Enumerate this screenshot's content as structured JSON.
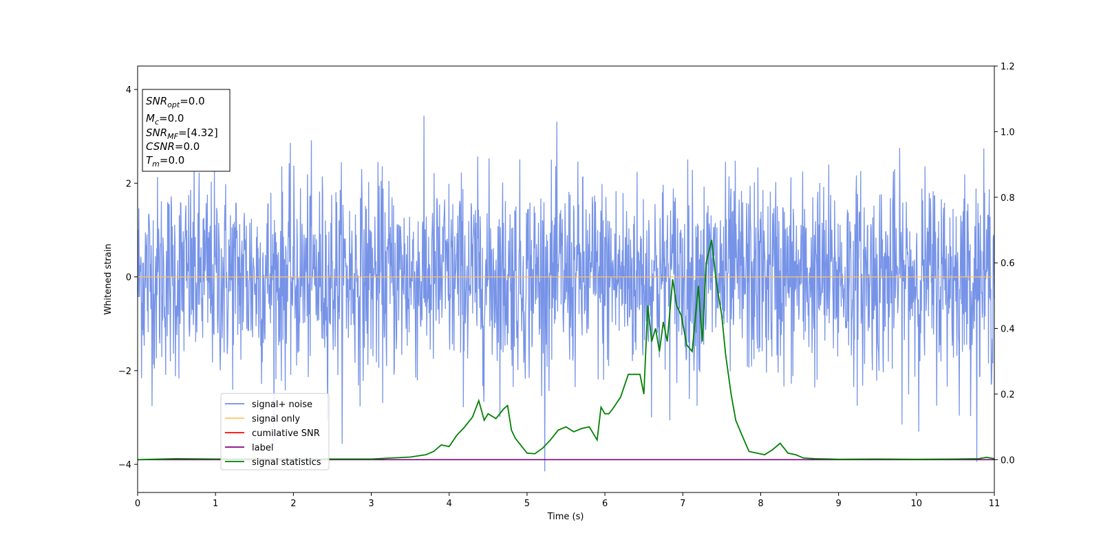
{
  "chart_data": {
    "type": "line",
    "xlabel": "Time (s)",
    "ylabel": "Whitened strain",
    "xlim": [
      0,
      11
    ],
    "ylim": [
      -4.6,
      4.5
    ],
    "y2lim": [
      -0.1,
      1.2
    ],
    "xticks": [
      "0",
      "1",
      "2",
      "3",
      "4",
      "5",
      "6",
      "7",
      "8",
      "9",
      "10",
      "11"
    ],
    "yticks": [
      "-4",
      "-2",
      "0",
      "2",
      "4"
    ],
    "y2ticks": [
      "0.0",
      "0.2",
      "0.4",
      "0.6",
      "0.8",
      "1.0",
      "1.2"
    ],
    "grid": false,
    "legend_placement": "lower-left",
    "info_box": {
      "snr_opt": {
        "main": "SNR",
        "sub": "opt",
        "value": "=0.0"
      },
      "mc": {
        "main": "M",
        "sub": "c",
        "value": "=0.0"
      },
      "snr_mf": {
        "main": "SNR",
        "sub": "MF",
        "value": "=[4.32]"
      },
      "csnr": {
        "main": "CSNR",
        "value": "=0.0"
      },
      "tm": {
        "main": "T",
        "sub": "m",
        "value": "=0.0"
      }
    },
    "series": [
      {
        "name": "signal+ noise",
        "color": "#6f8de6",
        "axis": "left",
        "description_values": "gaussian-like whitened noise, sample count ~2048 over 0-11 s",
        "noise_sigma": 1.0
      },
      {
        "name": "signal only",
        "color": "#ffc266",
        "axis": "left",
        "x": [
          0,
          11
        ],
        "y": [
          0,
          0
        ]
      },
      {
        "name": "cumilative SNR",
        "color": "#ff0000",
        "axis": "right",
        "x": [],
        "y": []
      },
      {
        "name": "label",
        "color": "#800080",
        "axis": "right",
        "x": [
          0,
          11
        ],
        "y": [
          0,
          0
        ]
      },
      {
        "name": "signal statistics",
        "color": "#008000",
        "axis": "right",
        "x": [
          0,
          0.5,
          1,
          1.5,
          2,
          2.5,
          3,
          3.5,
          3.7,
          3.8,
          3.9,
          4.0,
          4.1,
          4.2,
          4.3,
          4.38,
          4.45,
          4.5,
          4.6,
          4.7,
          4.75,
          4.8,
          4.85,
          4.9,
          5.0,
          5.1,
          5.2,
          5.3,
          5.4,
          5.5,
          5.6,
          5.7,
          5.8,
          5.9,
          5.95,
          6.0,
          6.05,
          6.1,
          6.2,
          6.3,
          6.4,
          6.45,
          6.5,
          6.55,
          6.6,
          6.65,
          6.7,
          6.75,
          6.8,
          6.87,
          6.92,
          6.98,
          7.05,
          7.12,
          7.2,
          7.25,
          7.3,
          7.37,
          7.43,
          7.5,
          7.55,
          7.62,
          7.68,
          7.75,
          7.85,
          7.95,
          8.05,
          8.15,
          8.25,
          8.35,
          8.45,
          8.55,
          8.7,
          8.9,
          9.0,
          9.5,
          10.0,
          10.5,
          10.8,
          10.9,
          11.0
        ],
        "y": [
          0,
          0.003,
          0.002,
          0.002,
          0.002,
          0.002,
          0.002,
          0.008,
          0.015,
          0.025,
          0.045,
          0.04,
          0.075,
          0.1,
          0.13,
          0.18,
          0.12,
          0.14,
          0.125,
          0.155,
          0.165,
          0.09,
          0.065,
          0.05,
          0.02,
          0.018,
          0.035,
          0.06,
          0.09,
          0.1,
          0.085,
          0.095,
          0.1,
          0.06,
          0.16,
          0.14,
          0.14,
          0.155,
          0.19,
          0.26,
          0.26,
          0.26,
          0.2,
          0.47,
          0.36,
          0.4,
          0.33,
          0.42,
          0.36,
          0.55,
          0.47,
          0.44,
          0.35,
          0.33,
          0.53,
          0.36,
          0.6,
          0.67,
          0.54,
          0.44,
          0.32,
          0.2,
          0.12,
          0.08,
          0.025,
          0.02,
          0.015,
          0.03,
          0.05,
          0.02,
          0.015,
          0.005,
          0.003,
          0.002,
          0.001,
          0.002,
          0.001,
          0.002,
          0.003,
          0.007,
          0.003
        ]
      }
    ]
  }
}
